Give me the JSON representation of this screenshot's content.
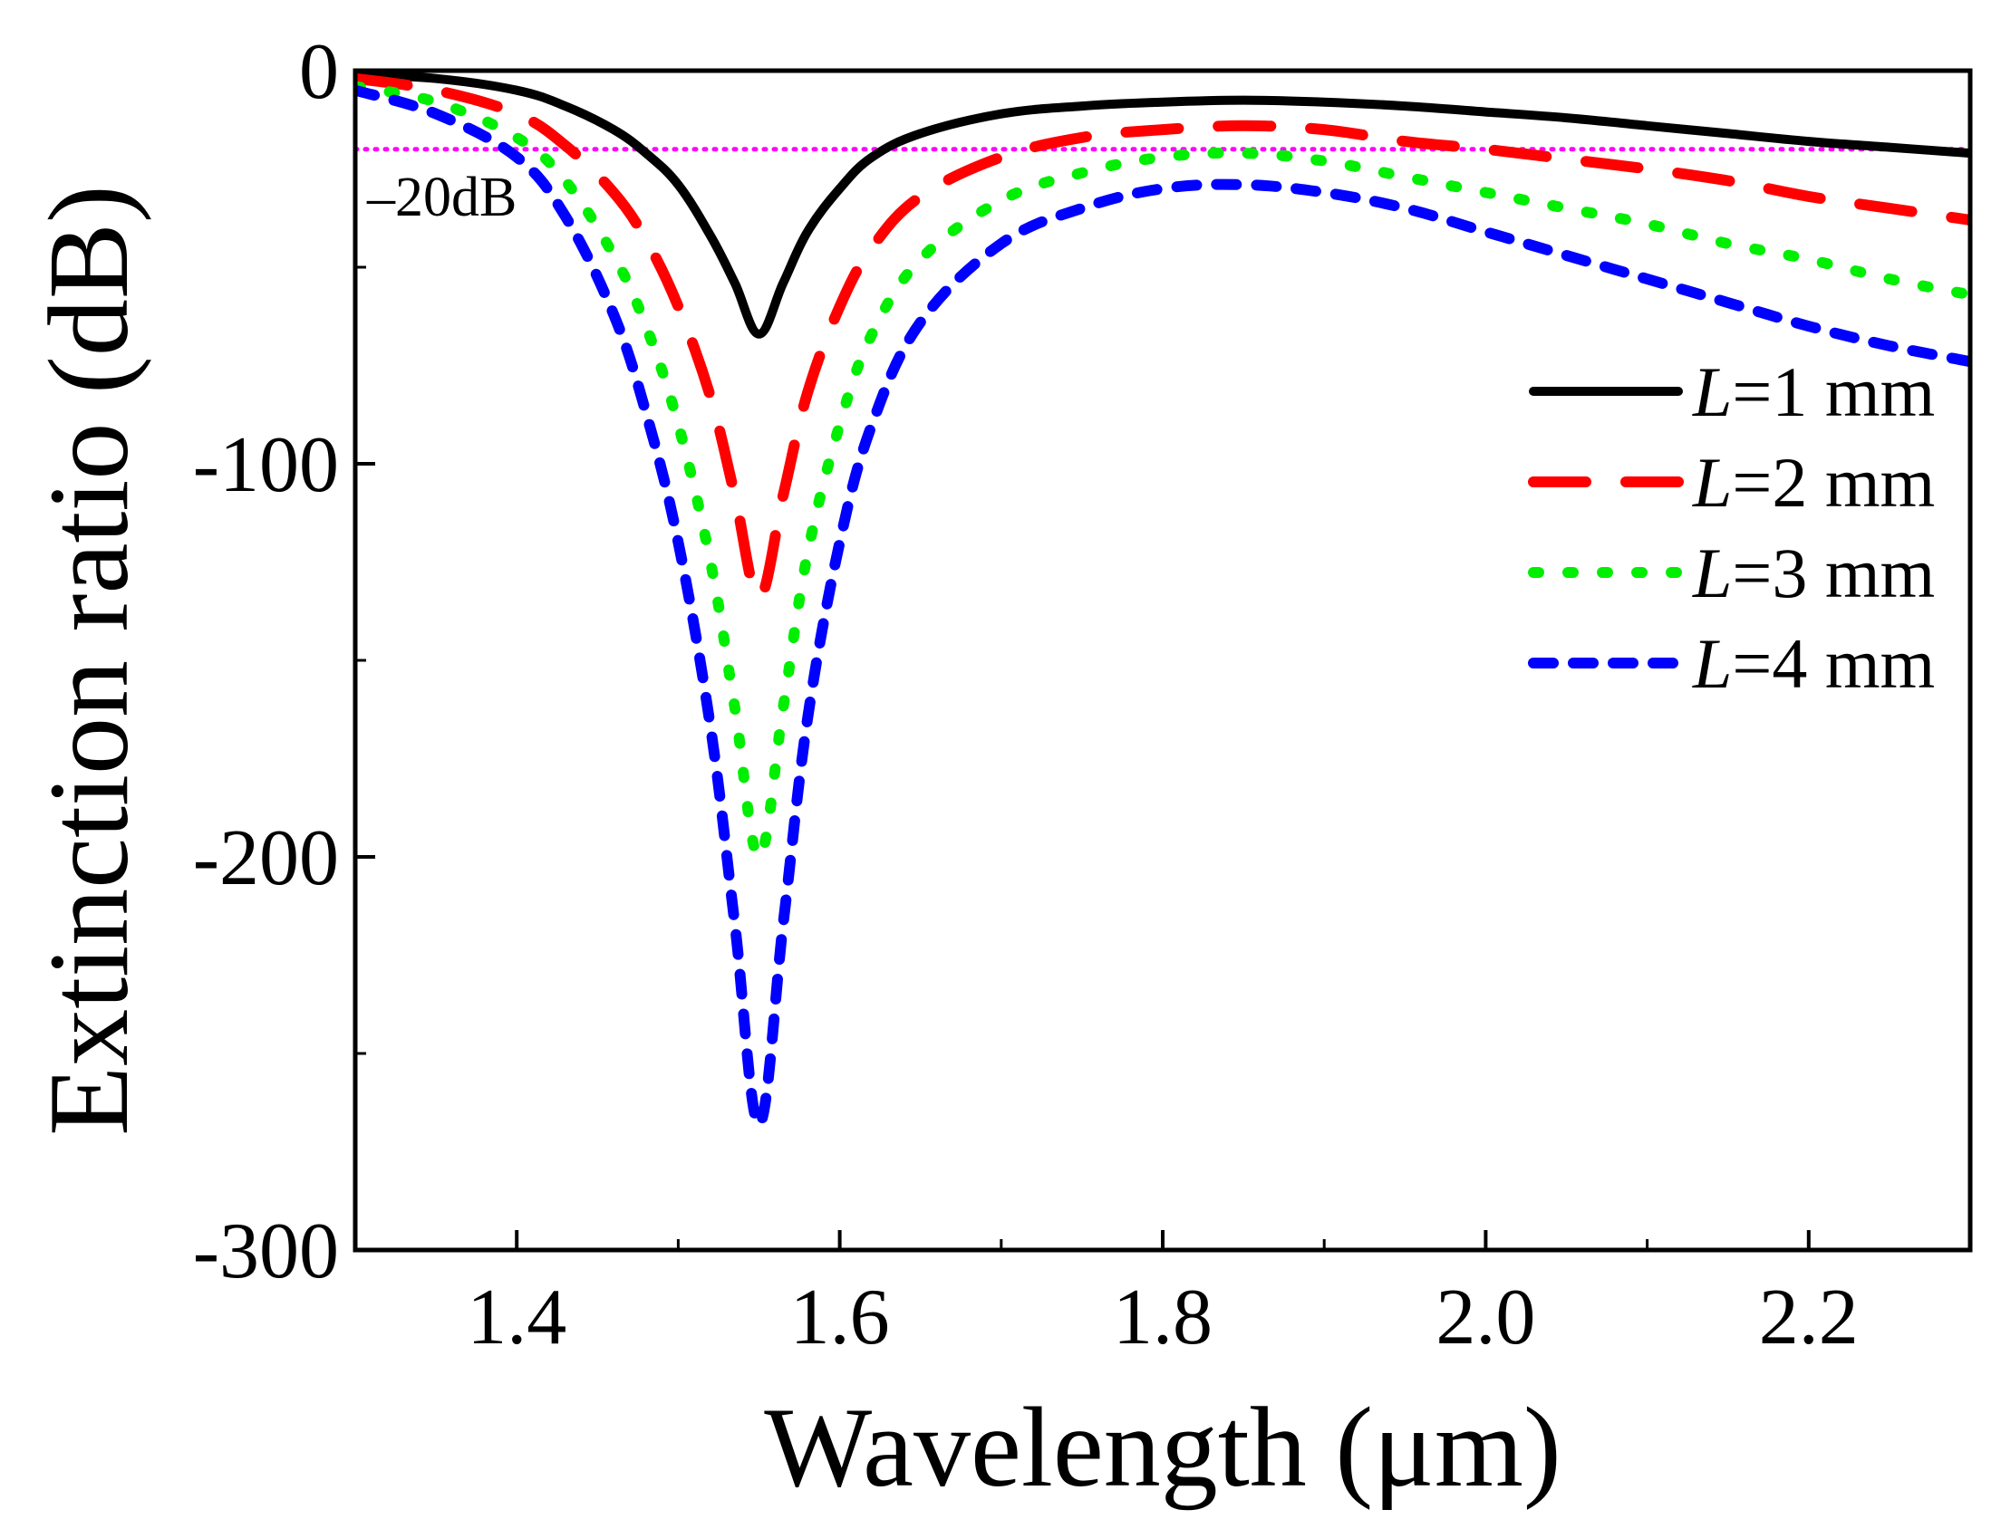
{
  "chart_data": {
    "type": "line",
    "title": "",
    "xlabel": "Wavelength (μm)",
    "ylabel": "Extinction ratio (dB)",
    "xlim": [
      1.3,
      2.3
    ],
    "ylim": [
      -300,
      0
    ],
    "x_ticks": [
      1.4,
      1.6,
      1.8,
      2.0,
      2.2
    ],
    "x_tick_labels": [
      "1.4",
      "1.6",
      "1.8",
      "2.0",
      "2.2"
    ],
    "x_minor_ticks": [
      1.5,
      1.7,
      1.9,
      2.1
    ],
    "y_ticks": [
      0,
      -100,
      -200,
      -300
    ],
    "y_tick_labels": [
      "0",
      "-100",
      "-200",
      "-300"
    ],
    "y_minor_ticks": [
      -50,
      -150,
      -250
    ],
    "grid": false,
    "legend_position": "right-middle",
    "reference_line": {
      "y": -20,
      "label": "–20dB",
      "color": "#ff00ff"
    },
    "series": [
      {
        "name": "L=1 mm",
        "label_prefix": "L",
        "label_suffix": "=1 mm",
        "color": "#000000",
        "style": "solid",
        "x": [
          1.3,
          1.35,
          1.4,
          1.43,
          1.46,
          1.48,
          1.5,
          1.52,
          1.535,
          1.55,
          1.565,
          1.58,
          1.6,
          1.62,
          1.65,
          1.7,
          1.75,
          1.8,
          1.85,
          1.9,
          1.95,
          2.0,
          2.05,
          2.1,
          2.15,
          2.2,
          2.25,
          2.3
        ],
        "y": [
          -1,
          -2,
          -5,
          -9,
          -15,
          -21,
          -29,
          -42,
          -54,
          -67,
          -54,
          -41,
          -30,
          -22,
          -16,
          -11,
          -9,
          -8,
          -7.5,
          -8,
          -9,
          -10.5,
          -12,
          -14,
          -16,
          -18,
          -19.5,
          -21
        ]
      },
      {
        "name": "L=2 mm",
        "label_prefix": "L",
        "label_suffix": "=2 mm",
        "color": "#ff0000",
        "style": "dashed",
        "x": [
          1.3,
          1.35,
          1.4,
          1.43,
          1.46,
          1.48,
          1.5,
          1.52,
          1.535,
          1.55,
          1.565,
          1.58,
          1.6,
          1.62,
          1.65,
          1.7,
          1.75,
          1.8,
          1.85,
          1.9,
          1.95,
          2.0,
          2.05,
          2.1,
          2.15,
          2.2,
          2.25,
          2.3
        ],
        "y": [
          -2,
          -5,
          -11,
          -19,
          -31,
          -43,
          -60,
          -83,
          -108,
          -134,
          -108,
          -82,
          -60,
          -45,
          -32,
          -22,
          -17,
          -15,
          -14,
          -15,
          -18,
          -20,
          -22.5,
          -25,
          -28,
          -32,
          -35,
          -38
        ]
      },
      {
        "name": "L=3 mm",
        "label_prefix": "L",
        "label_suffix": "=3 mm",
        "color": "#00ee00",
        "style": "dotted",
        "x": [
          1.3,
          1.35,
          1.4,
          1.43,
          1.46,
          1.48,
          1.5,
          1.52,
          1.535,
          1.55,
          1.565,
          1.58,
          1.6,
          1.62,
          1.65,
          1.7,
          1.75,
          1.8,
          1.85,
          1.9,
          1.95,
          2.0,
          2.05,
          2.1,
          2.15,
          2.2,
          2.25,
          2.3
        ],
        "y": [
          -4,
          -8,
          -17,
          -28,
          -47,
          -65,
          -90,
          -125,
          -162,
          -200,
          -162,
          -123,
          -90,
          -67,
          -48,
          -33,
          -26,
          -22,
          -21,
          -23,
          -27,
          -31,
          -35,
          -39,
          -44,
          -48,
          -53,
          -57
        ]
      },
      {
        "name": "L=4 mm",
        "label_prefix": "L",
        "label_suffix": "=4 mm",
        "color": "#0000ff",
        "style": "short-dashed",
        "x": [
          1.3,
          1.35,
          1.4,
          1.43,
          1.46,
          1.48,
          1.5,
          1.52,
          1.535,
          1.55,
          1.565,
          1.58,
          1.6,
          1.62,
          1.65,
          1.7,
          1.75,
          1.8,
          1.85,
          1.9,
          1.95,
          2.0,
          2.05,
          2.1,
          2.15,
          2.2,
          2.25,
          2.3
        ],
        "y": [
          -5,
          -11,
          -22,
          -37,
          -62,
          -87,
          -120,
          -167,
          -217,
          -268,
          -217,
          -165,
          -120,
          -90,
          -64,
          -44,
          -35,
          -30,
          -29,
          -31,
          -35,
          -41,
          -47,
          -53,
          -59,
          -65,
          -70,
          -74
        ]
      }
    ]
  }
}
